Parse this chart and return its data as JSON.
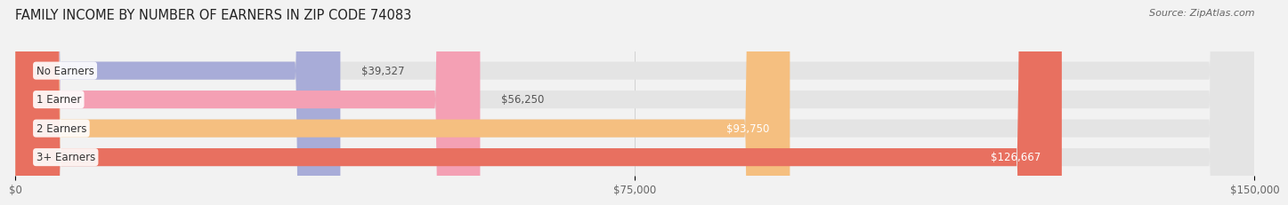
{
  "title": "FAMILY INCOME BY NUMBER OF EARNERS IN ZIP CODE 74083",
  "source": "Source: ZipAtlas.com",
  "categories": [
    "No Earners",
    "1 Earner",
    "2 Earners",
    "3+ Earners"
  ],
  "values": [
    39327,
    56250,
    93750,
    126667
  ],
  "bar_colors": [
    "#a8acd8",
    "#f4a0b4",
    "#f5bf80",
    "#e87060"
  ],
  "value_labels": [
    "$39,327",
    "$56,250",
    "$93,750",
    "$126,667"
  ],
  "value_label_inside": [
    false,
    false,
    true,
    true
  ],
  "xlim": [
    0,
    150000
  ],
  "xticks": [
    0,
    75000,
    150000
  ],
  "xtick_labels": [
    "$0",
    "$75,000",
    "$150,000"
  ],
  "bg_color": "#f2f2f2",
  "bar_bg_color": "#e4e4e4",
  "title_fontsize": 10.5,
  "source_fontsize": 8,
  "label_fontsize": 8.5,
  "value_fontsize": 8.5,
  "bar_height": 0.62
}
